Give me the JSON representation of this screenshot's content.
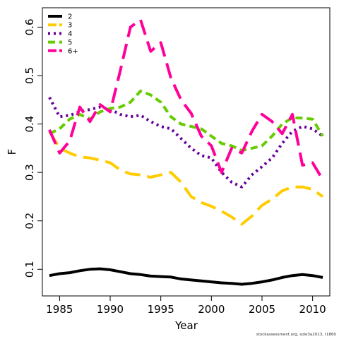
{
  "footer_text": "stockassessment.org, sole3a2013, r1860",
  "chart_data": {
    "type": "line",
    "title": "",
    "xlabel": "Year",
    "ylabel": "F",
    "xlim": [
      1983.3,
      2011.7
    ],
    "ylim": [
      0.045,
      0.64
    ],
    "x_ticks": [
      1985,
      1990,
      1995,
      2000,
      2005,
      2010
    ],
    "y_ticks": [
      0.1,
      0.2,
      0.3,
      0.4,
      0.5,
      0.6
    ],
    "grid": false,
    "legend_position": "top-left",
    "x": [
      1984,
      1985,
      1986,
      1987,
      1988,
      1989,
      1990,
      1991,
      1992,
      1993,
      1994,
      1995,
      1996,
      1997,
      1998,
      1999,
      2000,
      2001,
      2002,
      2003,
      2004,
      2005,
      2006,
      2007,
      2008,
      2009,
      2010,
      2011
    ],
    "series": [
      {
        "name": "2",
        "color": "#000000",
        "dash": "solid",
        "values": [
          0.087,
          0.091,
          0.093,
          0.097,
          0.1,
          0.101,
          0.099,
          0.095,
          0.091,
          0.089,
          0.086,
          0.085,
          0.084,
          0.08,
          0.078,
          0.076,
          0.074,
          0.072,
          0.071,
          0.069,
          0.071,
          0.074,
          0.078,
          0.083,
          0.087,
          0.089,
          0.087,
          0.083
        ]
      },
      {
        "name": "3",
        "color": "#ffcc00",
        "dash": "longdash",
        "values": [
          0.385,
          0.35,
          0.34,
          0.332,
          0.33,
          0.325,
          0.32,
          0.305,
          0.297,
          0.295,
          0.29,
          0.295,
          0.3,
          0.28,
          0.25,
          0.238,
          0.23,
          0.22,
          0.208,
          0.193,
          0.21,
          0.232,
          0.245,
          0.262,
          0.27,
          0.27,
          0.265,
          0.25
        ]
      },
      {
        "name": "4",
        "color": "#660099",
        "dash": "dotted",
        "values": [
          0.455,
          0.415,
          0.418,
          0.425,
          0.43,
          0.435,
          0.43,
          0.42,
          0.415,
          0.418,
          0.405,
          0.395,
          0.39,
          0.37,
          0.35,
          0.335,
          0.33,
          0.3,
          0.28,
          0.27,
          0.295,
          0.312,
          0.33,
          0.36,
          0.385,
          0.395,
          0.39,
          0.375
        ]
      },
      {
        "name": "5",
        "color": "#66cc00",
        "dash": "dashed",
        "values": [
          0.38,
          0.39,
          0.41,
          0.42,
          0.41,
          0.425,
          0.432,
          0.435,
          0.445,
          0.468,
          0.46,
          0.445,
          0.415,
          0.4,
          0.395,
          0.39,
          0.375,
          0.36,
          0.355,
          0.345,
          0.35,
          0.355,
          0.375,
          0.4,
          0.413,
          0.412,
          0.41,
          0.375
        ]
      },
      {
        "name": "6+",
        "color": "#ff0099",
        "dash": "longdash",
        "values": [
          0.388,
          0.34,
          0.365,
          0.435,
          0.405,
          0.44,
          0.425,
          0.51,
          0.6,
          0.615,
          0.55,
          0.568,
          0.495,
          0.45,
          0.422,
          0.375,
          0.355,
          0.3,
          0.35,
          0.34,
          0.385,
          0.42,
          0.405,
          0.38,
          0.42,
          0.315,
          0.32,
          0.285
        ]
      }
    ]
  }
}
